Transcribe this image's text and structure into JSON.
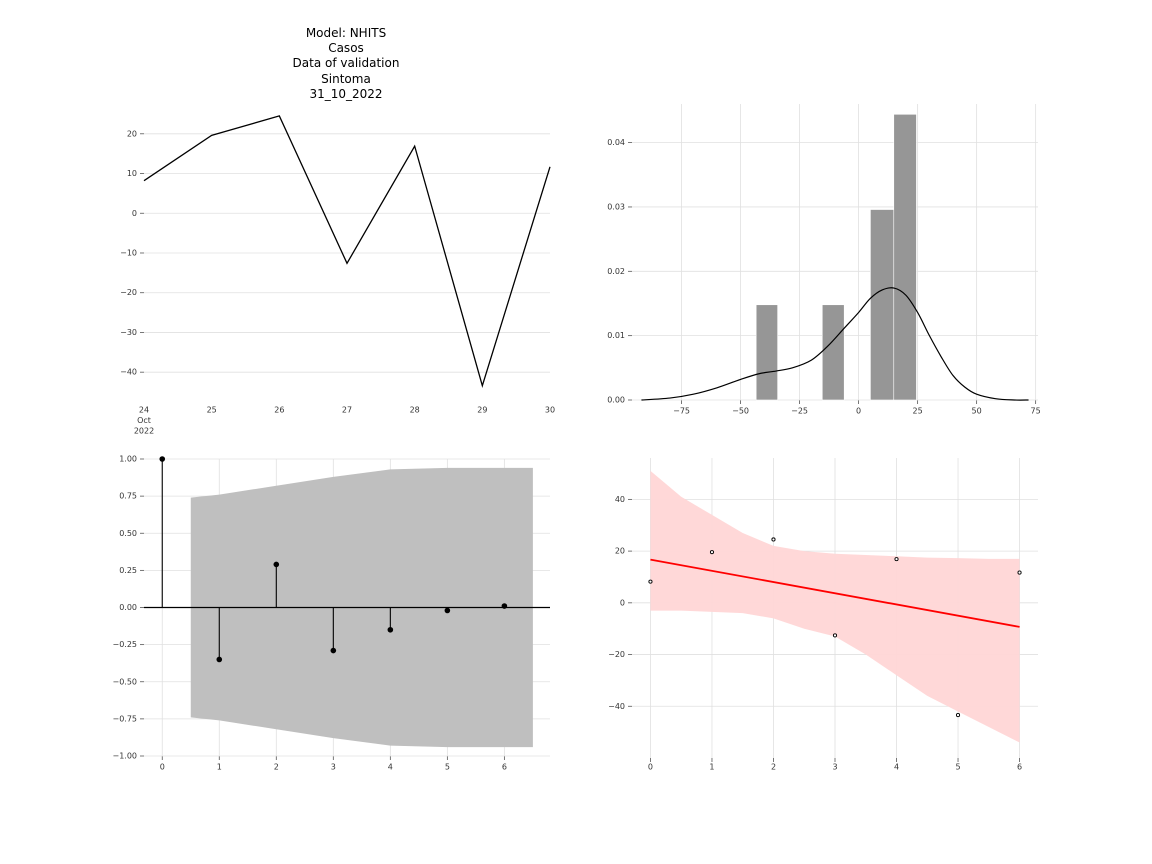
{
  "title_lines": [
    "Model: NHITS",
    "Casos",
    "Data of validation",
    "Sintoma",
    "31_10_2022"
  ],
  "chart_data": [
    {
      "type": "line",
      "x": [
        "2022-10-24",
        "2022-10-25",
        "2022-10-26",
        "2022-10-27",
        "2022-10-28",
        "2022-10-29",
        "2022-10-30"
      ],
      "xtick_labels": [
        "24\nOct\n2022",
        "25",
        "26",
        "27",
        "28",
        "29",
        "30"
      ],
      "values": [
        8.2,
        19.6,
        24.5,
        -12.6,
        16.9,
        -43.4,
        11.7
      ],
      "yticks": [
        20,
        10,
        0,
        -10,
        -20,
        -30,
        -40
      ],
      "ylim": [
        -46.5,
        27.5
      ],
      "grid": "horizontal",
      "line_color": "#000000"
    },
    {
      "type": "bar",
      "subtype": "histogram with kde",
      "bins": [
        {
          "x0": -43.4,
          "x1": -34.3,
          "density": 0.0148
        },
        {
          "x0": -15.4,
          "x1": -6.1,
          "density": 0.0148
        },
        {
          "x0": 5.0,
          "x1": 14.9,
          "density": 0.0296
        },
        {
          "x0": 14.9,
          "x1": 24.5,
          "density": 0.0444
        }
      ],
      "kde": {
        "x": [
          -92,
          -80,
          -70,
          -60,
          -50,
          -42,
          -35,
          -28,
          -20,
          -13,
          -6,
          0,
          5,
          10,
          15,
          20,
          25,
          30,
          35,
          40,
          45,
          50,
          58,
          66,
          72
        ],
        "y": [
          0.0,
          0.0003,
          0.0009,
          0.0019,
          0.0032,
          0.0041,
          0.0045,
          0.005,
          0.0062,
          0.0084,
          0.0112,
          0.0136,
          0.0158,
          0.0171,
          0.0174,
          0.0163,
          0.0136,
          0.01,
          0.0067,
          0.0038,
          0.002,
          0.0009,
          0.0002,
          0.0,
          0.0
        ]
      },
      "xticks": [
        -75,
        -50,
        -25,
        0,
        25,
        50,
        75
      ],
      "xtick_labels": [
        "−75",
        "−50",
        "−25",
        "0",
        "25",
        "50",
        "75"
      ],
      "yticks": [
        0.0,
        0.01,
        0.02,
        0.03,
        0.04
      ],
      "ytick_labels": [
        "0.00",
        "0.01",
        "0.02",
        "0.03",
        "0.04"
      ],
      "xlim": [
        -96,
        76
      ],
      "ylim": [
        0,
        0.046
      ],
      "bar_color": "#969696",
      "grid": true
    },
    {
      "type": "scatter",
      "subtype": "autocorrelation stem",
      "x": [
        0,
        1,
        2,
        3,
        4,
        5,
        6
      ],
      "values": [
        1.0,
        -0.35,
        0.29,
        -0.29,
        -0.15,
        -0.02,
        0.01
      ],
      "confidence_band": {
        "x": [
          0.5,
          1,
          2,
          3,
          4,
          5,
          6,
          6.5
        ],
        "upper": [
          0.74,
          0.76,
          0.82,
          0.88,
          0.93,
          0.94,
          0.94,
          0.94
        ]
      },
      "xticks": [
        0,
        1,
        2,
        3,
        4,
        5,
        6
      ],
      "yticks": [
        1.0,
        0.75,
        0.5,
        0.25,
        0.0,
        -0.25,
        -0.5,
        -0.75,
        -1.0
      ],
      "ytick_labels": [
        "1.00",
        "0.75",
        "0.50",
        "0.25",
        "0.00",
        "−0.25",
        "−0.50",
        "−0.75",
        "−1.00"
      ],
      "xlim": [
        -0.32,
        6.8
      ],
      "ylim": [
        -1.0,
        1.0
      ],
      "band_color": "#bfbfbf",
      "grid": true
    },
    {
      "type": "scatter",
      "subtype": "regression with confidence band",
      "x": [
        0,
        1,
        2,
        3,
        4,
        5,
        6
      ],
      "values": [
        8.2,
        19.6,
        24.5,
        -12.6,
        16.9,
        -43.4,
        11.7
      ],
      "fit": {
        "x": [
          0,
          6
        ],
        "y": [
          16.7,
          -9.3
        ]
      },
      "band": {
        "x": [
          0,
          0.5,
          1,
          1.5,
          2,
          2.5,
          3,
          3.5,
          4,
          4.5,
          5,
          5.5,
          6
        ],
        "upper": [
          51,
          41,
          34,
          27,
          22,
          20,
          19,
          18.5,
          18,
          17.5,
          17.3,
          17,
          17
        ],
        "lower": [
          -3,
          -3,
          -3.5,
          -4,
          -6,
          -10,
          -13,
          -20,
          -28,
          -36,
          -42,
          -48,
          -54
        ]
      },
      "xticks": [
        0,
        1,
        2,
        3,
        4,
        5,
        6
      ],
      "yticks": [
        40,
        20,
        0,
        -20,
        -40
      ],
      "ytick_labels": [
        "40",
        "20",
        "0",
        "−20",
        "−40"
      ],
      "xlim": [
        -0.3,
        6.3
      ],
      "ylim": [
        -60,
        56
      ],
      "line_color": "#ff0000",
      "band_color": "#ffd6d6",
      "grid": true
    }
  ]
}
